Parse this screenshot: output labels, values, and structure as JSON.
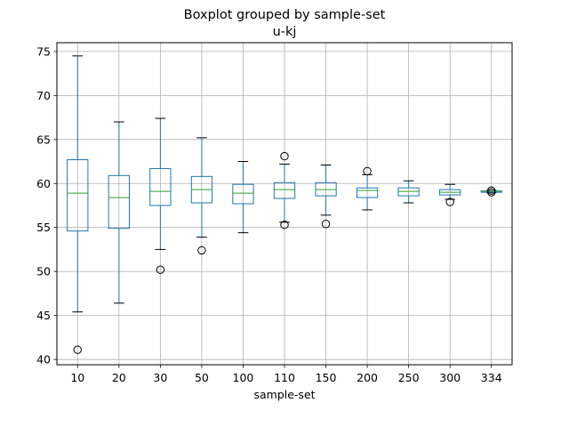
{
  "chart_data": {
    "type": "boxplot",
    "title": "Boxplot grouped by sample-set",
    "subtitle": "u-kj",
    "xlabel": "sample-set",
    "ylabel": "",
    "ylim": [
      39.4,
      76.0
    ],
    "yticks": [
      40,
      45,
      50,
      55,
      60,
      65,
      70,
      75
    ],
    "grid": true,
    "colors": {
      "box": "#1f77b4",
      "median": "#2ca02c",
      "whisker": "#000000",
      "flier": "#000000",
      "grid": "#b0b0b0"
    },
    "categories": [
      "10",
      "20",
      "30",
      "50",
      "100",
      "110",
      "150",
      "200",
      "250",
      "300",
      "334"
    ],
    "boxes": [
      {
        "q1": 54.6,
        "median": 58.9,
        "q3": 62.7,
        "whislo": 45.4,
        "whishi": 74.5,
        "fliers": [
          41.1
        ]
      },
      {
        "q1": 54.9,
        "median": 58.4,
        "q3": 60.9,
        "whislo": 46.4,
        "whishi": 67.0,
        "fliers": []
      },
      {
        "q1": 57.5,
        "median": 59.1,
        "q3": 61.7,
        "whislo": 52.5,
        "whishi": 67.4,
        "fliers": [
          50.2
        ]
      },
      {
        "q1": 57.8,
        "median": 59.3,
        "q3": 60.8,
        "whislo": 53.9,
        "whishi": 65.2,
        "fliers": [
          52.4
        ]
      },
      {
        "q1": 57.7,
        "median": 58.9,
        "q3": 59.9,
        "whislo": 54.4,
        "whishi": 62.5,
        "fliers": []
      },
      {
        "q1": 58.3,
        "median": 59.3,
        "q3": 60.1,
        "whislo": 55.6,
        "whishi": 62.2,
        "fliers": [
          63.1,
          55.3
        ]
      },
      {
        "q1": 58.6,
        "median": 59.3,
        "q3": 60.1,
        "whislo": 56.4,
        "whishi": 62.1,
        "fliers": [
          55.4
        ]
      },
      {
        "q1": 58.4,
        "median": 59.2,
        "q3": 59.5,
        "whislo": 57.0,
        "whishi": 61.0,
        "fliers": [
          61.4
        ]
      },
      {
        "q1": 58.6,
        "median": 59.1,
        "q3": 59.5,
        "whislo": 57.8,
        "whishi": 60.3,
        "fliers": []
      },
      {
        "q1": 58.7,
        "median": 59.0,
        "q3": 59.3,
        "whislo": 58.2,
        "whishi": 59.9,
        "fliers": [
          57.9
        ]
      },
      {
        "q1": 59.0,
        "median": 59.1,
        "q3": 59.15,
        "whislo": 58.95,
        "whishi": 59.2,
        "fliers": [
          59.2,
          59.0
        ]
      }
    ]
  }
}
